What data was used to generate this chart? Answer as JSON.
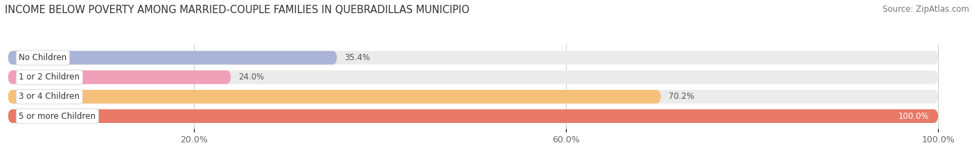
{
  "title": "INCOME BELOW POVERTY AMONG MARRIED-COUPLE FAMILIES IN QUEBRADILLAS MUNICIPIO",
  "source": "Source: ZipAtlas.com",
  "categories": [
    "No Children",
    "1 or 2 Children",
    "3 or 4 Children",
    "5 or more Children"
  ],
  "values": [
    35.4,
    24.0,
    70.2,
    100.0
  ],
  "bar_colors": [
    "#aab4d8",
    "#f0a0b8",
    "#f5c07a",
    "#e87868"
  ],
  "bar_bg_color": "#ebebeb",
  "xlabel_ticks": [
    20.0,
    60.0,
    100.0
  ],
  "xlabel_tick_labels": [
    "20.0%",
    "60.0%",
    "100.0%"
  ],
  "xlim": [
    0,
    103
  ],
  "title_fontsize": 10.5,
  "source_fontsize": 8.5,
  "tick_fontsize": 9,
  "label_fontsize": 8.5,
  "value_fontsize": 8.5,
  "bar_height": 0.7,
  "figsize": [
    14.06,
    2.33
  ],
  "dpi": 100
}
